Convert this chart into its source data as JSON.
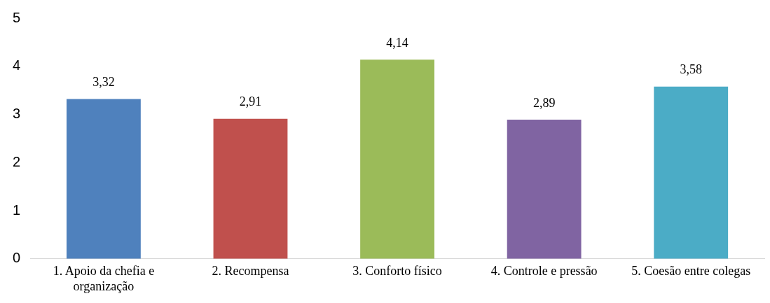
{
  "chart_data": {
    "type": "bar",
    "categories": [
      "1. Apoio da chefia e organização",
      "2. Recompensa",
      "3. Conforto físico",
      "4. Controle e pressão",
      "5. Coesão entre colegas"
    ],
    "values": [
      3.32,
      2.91,
      4.14,
      2.89,
      3.58
    ],
    "colors": [
      "#4f81bd",
      "#c0504d",
      "#9bbb59",
      "#8064a2",
      "#4bacc6"
    ],
    "value_labels": [
      "3,32",
      "2,91",
      "4,14",
      "2,89",
      "3,58"
    ],
    "ylim": [
      0,
      5
    ],
    "yticks": [
      0,
      1,
      2,
      3,
      4,
      5
    ],
    "grid": false,
    "legend": false
  }
}
